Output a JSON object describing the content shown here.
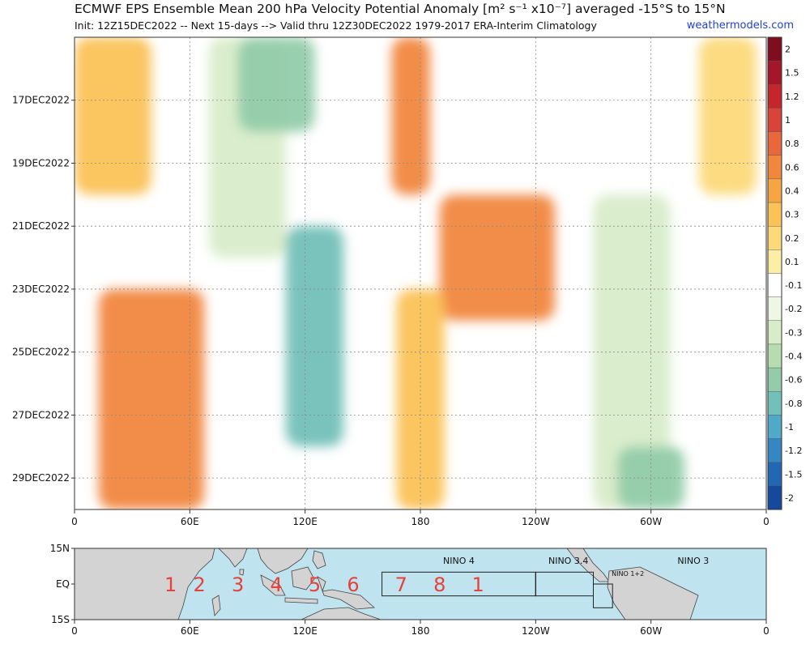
{
  "header": {
    "title": "ECMWF EPS Ensemble Mean 200 hPa Velocity Potential Anomaly [m² s⁻¹ x10⁻⁷] averaged -15°S to 15°N",
    "subtitle": "Init: 12Z15DEC2022 -- Next 15-days --> Valid thru 12Z30DEC2022 1979-2017 ERA-Interim Climatology",
    "site": "weathermodels.com"
  },
  "chart_data": [
    {
      "type": "heatmap",
      "title": "ECMWF EPS Ensemble Mean 200 hPa Velocity Potential Anomaly [m² s⁻¹ x10⁻⁷] averaged -15°S to 15°N",
      "x_ticks": [
        "0",
        "60E",
        "120E",
        "180",
        "120W",
        "60W",
        "0"
      ],
      "x_range_deg_east": [
        0,
        360
      ],
      "y_ticks": [
        "17DEC2022",
        "19DEC2022",
        "21DEC2022",
        "23DEC2022",
        "25DEC2022",
        "27DEC2022",
        "29DEC2022"
      ],
      "y_range": [
        "15DEC2022",
        "30DEC2022"
      ],
      "grid": true,
      "colorbar": {
        "labels": [
          "2",
          "1.5",
          "1.2",
          "1",
          "0.8",
          "0.6",
          "0.4",
          "0.3",
          "0.2",
          "0.1",
          "-0.1",
          "-0.2",
          "-0.3",
          "-0.4",
          "-0.6",
          "-0.8",
          "-1",
          "-1.2",
          "-1.5",
          "-2"
        ],
        "colors": [
          "#7f0d1f",
          "#a6162a",
          "#c4262c",
          "#d8433a",
          "#e8673c",
          "#f1863f",
          "#f7a543",
          "#fbc257",
          "#fcd97a",
          "#fdeea6",
          "#ffffff",
          "#eef6e4",
          "#d8ecc9",
          "#b6dcb0",
          "#92ccaa",
          "#72c0b8",
          "#4fa9c8",
          "#3587c4",
          "#2167b3",
          "#14499e"
        ]
      },
      "anomaly_regions": [
        {
          "lon_center": 40,
          "lon_width": 55,
          "date_start": "23DEC2022",
          "date_end": "30DEC2022",
          "value": 0.6
        },
        {
          "lon_center": 20,
          "lon_width": 40,
          "date_start": "15DEC2022",
          "date_end": "20DEC2022",
          "value": 0.3
        },
        {
          "lon_center": 90,
          "lon_width": 40,
          "date_start": "15DEC2022",
          "date_end": "22DEC2022",
          "value": -0.3
        },
        {
          "lon_center": 105,
          "lon_width": 40,
          "date_start": "15DEC2022",
          "date_end": "18DEC2022",
          "value": -0.6
        },
        {
          "lon_center": 125,
          "lon_width": 30,
          "date_start": "21DEC2022",
          "date_end": "28DEC2022",
          "value": -0.8
        },
        {
          "lon_center": 175,
          "lon_width": 20,
          "date_start": "15DEC2022",
          "date_end": "20DEC2022",
          "value": 0.6
        },
        {
          "lon_center": 220,
          "lon_width": 60,
          "date_start": "20DEC2022",
          "date_end": "24DEC2022",
          "value": 0.6
        },
        {
          "lon_center": 180,
          "lon_width": 25,
          "date_start": "23DEC2022",
          "date_end": "30DEC2022",
          "value": 0.3
        },
        {
          "lon_center": 290,
          "lon_width": 40,
          "date_start": "20DEC2022",
          "date_end": "30DEC2022",
          "value": -0.3
        },
        {
          "lon_center": 300,
          "lon_width": 35,
          "date_start": "28DEC2022",
          "date_end": "30DEC2022",
          "value": -0.6
        },
        {
          "lon_center": 340,
          "lon_width": 30,
          "date_start": "15DEC2022",
          "date_end": "20DEC2022",
          "value": 0.2
        }
      ]
    },
    {
      "type": "map",
      "y_ticks": [
        "15N",
        "EQ",
        "15S"
      ],
      "x_ticks": [
        "0",
        "60E",
        "120E",
        "180",
        "120W",
        "60W",
        "0"
      ],
      "regions": [
        "NINO 4",
        "NINO 3.4",
        "NINO 3",
        "NINO 1+2"
      ],
      "mjo_phases": [
        {
          "label": "1",
          "lon": 50
        },
        {
          "label": "2",
          "lon": 65
        },
        {
          "label": "3",
          "lon": 85
        },
        {
          "label": "4",
          "lon": 105
        },
        {
          "label": "5",
          "lon": 125
        },
        {
          "label": "6",
          "lon": 145
        },
        {
          "label": "7",
          "lon": 170
        },
        {
          "label": "8",
          "lon": 190
        },
        {
          "label": "1",
          "lon": 210
        }
      ]
    }
  ]
}
